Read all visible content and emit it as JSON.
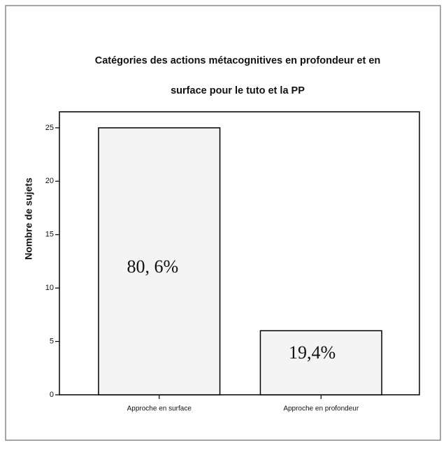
{
  "chart_data": {
    "type": "bar",
    "title": [
      "Catégories des actions métacognitives en profondeur et en",
      "surface pour le tuto et la PP"
    ],
    "ylabel": "Nombre de sujets",
    "categories": [
      "Approche en surface",
      "Approche en profondeur"
    ],
    "values": [
      25,
      6
    ],
    "annotations": [
      "80, 6%",
      "19,4%"
    ],
    "color": "#f4f4f4",
    "ylim": [
      0,
      26.5
    ],
    "yticks": [
      0,
      5,
      10,
      15,
      20,
      25
    ]
  }
}
